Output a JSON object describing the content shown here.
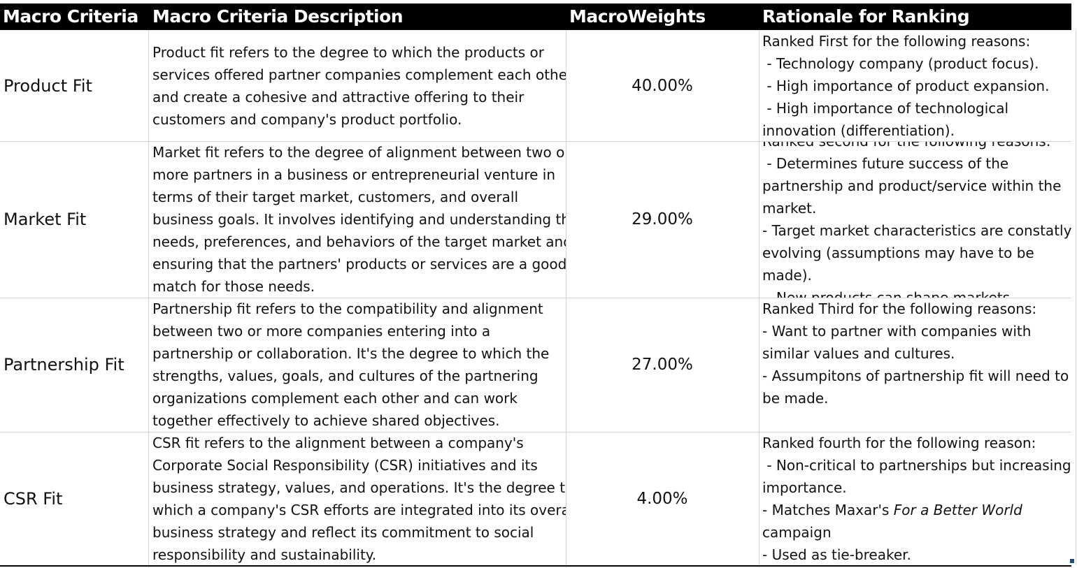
{
  "headers": {
    "criteria": "Macro Criteria",
    "description": "Macro Criteria Description",
    "weights": "MacroWeights",
    "rationale": "Rationale for Ranking"
  },
  "rows": [
    {
      "criteria": "Product Fit",
      "weight": "40.00%",
      "description": [
        "Product fit refers to the degree to which the products or",
        "services offered partner companies complement each other",
        "and create a cohesive and attractive offering to their",
        "customers and company's product portfolio."
      ],
      "rationale": [
        "Ranked First for the following reasons:",
        " - Technology company (product focus).",
        " - High importance of product expansion.",
        " - High importance of technological",
        "innovation (differentiation)."
      ]
    },
    {
      "criteria": "Market Fit",
      "weight": "29.00%",
      "description": [
        "Market fit refers to the degree of alignment between two or",
        "more partners in a business or entrepreneurial venture in",
        "terms of their target market, customers, and overall",
        "business goals. It involves identifying and understanding the",
        "needs, preferences, and behaviors of the target market and",
        "ensuring that the partners' products or services are a good",
        "match for those needs."
      ],
      "rationale": [
        "Ranked second for the following reasons:",
        " - Determines future success of the",
        "partnership and product/service within the",
        "market.",
        "- Target market characteristics are constatly",
        "evolving (assumptions may have to be",
        "made).",
        " - New products can shape markets."
      ]
    },
    {
      "criteria": "Partnership Fit",
      "weight": "27.00%",
      "description": [
        "Partnership fit refers to the compatibility and alignment",
        "between two or more companies entering into a",
        "partnership or collaboration. It's the degree to which the",
        "strengths, values, goals, and cultures of the partnering",
        "organizations complement each other and can work",
        "together effectively to achieve shared objectives."
      ],
      "rationale": [
        "Ranked Third for the following reasons:",
        "- Want to partner with companies with",
        "similar values and cultures.",
        "- Assumpitons of partnership fit will need to",
        "be made."
      ]
    },
    {
      "criteria": "CSR Fit",
      "weight": "4.00%",
      "description": [
        "CSR fit refers to the alignment between a company's",
        "Corporate Social Responsibility (CSR) initiatives and its",
        "business strategy, values, and operations. It's the degree to",
        "which a company's CSR efforts are integrated into its overall",
        "business strategy and reflect its commitment to social",
        "responsibility and sustainability."
      ],
      "rationale_parts": {
        "l1": "Ranked fourth for the following reason:",
        "l2": " - Non-critical to partnerships but increasing",
        "l3": "importance.",
        "l4_pre": "- Matches Maxar's ",
        "l4_italic": "For a Better World",
        "l5": "campaign",
        "l6": "- Used as tie-breaker."
      }
    }
  ]
}
